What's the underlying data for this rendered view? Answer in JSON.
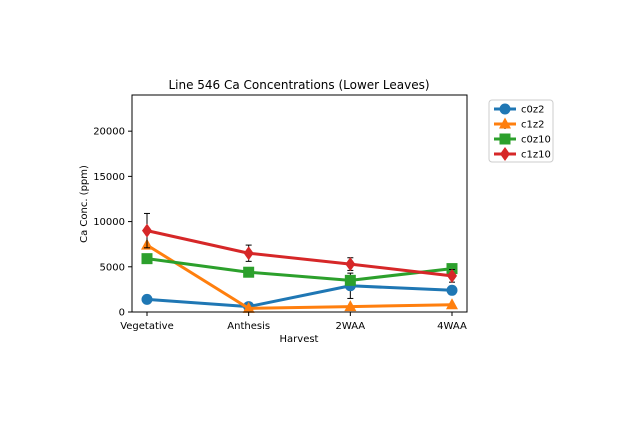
{
  "chart_data": {
    "type": "line",
    "title": "Line 546 Ca Concentrations (Lower Leaves)",
    "xlabel": "Harvest",
    "ylabel": "Ca Conc. (ppm)",
    "categories": [
      "Vegetative",
      "Anthesis",
      "2WAA",
      "4WAA"
    ],
    "ylim": [
      0,
      24000
    ],
    "yticks": [
      0,
      5000,
      10000,
      15000,
      20000
    ],
    "ytick_labels": [
      "0",
      "5000",
      "10000",
      "15000",
      "20000"
    ],
    "grid": false,
    "legend_position": "outside-top-right",
    "series": [
      {
        "name": "c0z2",
        "color": "#1f77b4",
        "marker": "circle",
        "values": [
          1400,
          600,
          2900,
          2400
        ],
        "errors": [
          0,
          0,
          1400,
          0
        ]
      },
      {
        "name": "c1z2",
        "color": "#ff7f0e",
        "marker": "triangle",
        "values": [
          7400,
          400,
          600,
          800
        ],
        "errors": [
          0,
          0,
          0,
          0
        ]
      },
      {
        "name": "c0z10",
        "color": "#2ca02c",
        "marker": "square",
        "values": [
          5900,
          4400,
          3500,
          4800
        ],
        "errors": [
          0,
          0,
          0,
          0
        ]
      },
      {
        "name": "c1z10",
        "color": "#d62728",
        "marker": "diamond",
        "values": [
          9000,
          6500,
          5300,
          4000
        ],
        "errors": [
          1900,
          900,
          700,
          700
        ]
      }
    ]
  }
}
